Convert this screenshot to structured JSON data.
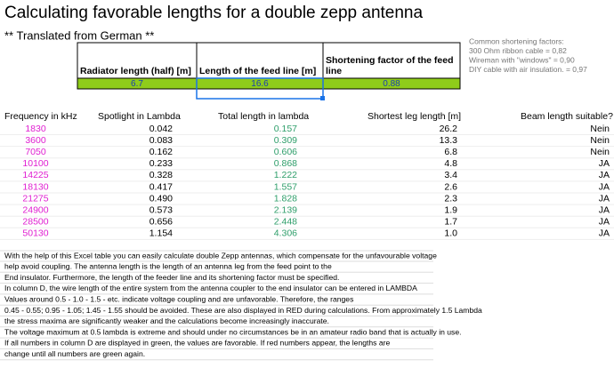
{
  "header": {
    "title": "Calculating favorable lengths for a double zepp antenna",
    "subtitle": "** Translated from German **"
  },
  "inputs": {
    "labels": [
      "Radiator length (half) [m]",
      "Length of the feed line [m]",
      "Shortening factor of the feed line"
    ],
    "values": [
      "6.7",
      "16.6",
      "0.88"
    ]
  },
  "notes": [
    "Common shortening factors:",
    "300 Ohm ribbon cable = 0,82",
    "Wireman with \"windows\" = 0,90",
    "DIY cable with air insulation. = 0,97"
  ],
  "table": {
    "columns": [
      "Frequency in kHz",
      "Spotlight in Lambda",
      "Total length in lambda",
      "Shortest leg length [m]",
      "Beam length suitable?"
    ],
    "rows": [
      [
        "1830",
        "0.042",
        "0.157",
        "26.2",
        "Nein"
      ],
      [
        "3600",
        "0.083",
        "0.309",
        "13.3",
        "Nein"
      ],
      [
        "7050",
        "0.162",
        "0.606",
        "6.8",
        "Nein"
      ],
      [
        "10100",
        "0.233",
        "0.868",
        "4.8",
        "JA"
      ],
      [
        "14225",
        "0.328",
        "1.222",
        "3.4",
        "JA"
      ],
      [
        "18130",
        "0.417",
        "1.557",
        "2.6",
        "JA"
      ],
      [
        "21275",
        "0.490",
        "1.828",
        "2.3",
        "JA"
      ],
      [
        "24900",
        "0.573",
        "2.139",
        "1.9",
        "JA"
      ],
      [
        "28500",
        "0.656",
        "2.448",
        "1.7",
        "JA"
      ],
      [
        "50130",
        "1.154",
        "4.306",
        "1.0",
        "JA"
      ]
    ]
  },
  "explanation": [
    "With the help of this Excel table you can easily calculate double Zepp antennas, which compensate for the unfavourable voltage",
    "help avoid coupling. The antenna length is the length of an antenna leg from the feed point to the",
    "End insulator. Furthermore, the length of the feeder line and its shortening factor must be specified.",
    "In column D, the wire length of the entire system from the antenna coupler to the end insulator can be entered in LAMBDA",
    "Values around 0.5 - 1.0 - 1.5 - etc. indicate voltage coupling and are unfavorable. Therefore, the ranges",
    "0.45 - 0.55; 0.95 - 1.05; 1.45 - 1.55 should be avoided. These are also displayed in RED during calculations. From approximately 1.5 Lambda",
    "the stress maxima are significantly weaker and the calculations become increasingly inaccurate.",
    "The voltage maximum at 0.5 lambda is extreme and should under no circumstances be in an amateur radio band that is actually in use.",
    "If all numbers in column D are displayed in green, the values are favorable. If red numbers appear, the lengths are",
    "change until all numbers are green again."
  ]
}
